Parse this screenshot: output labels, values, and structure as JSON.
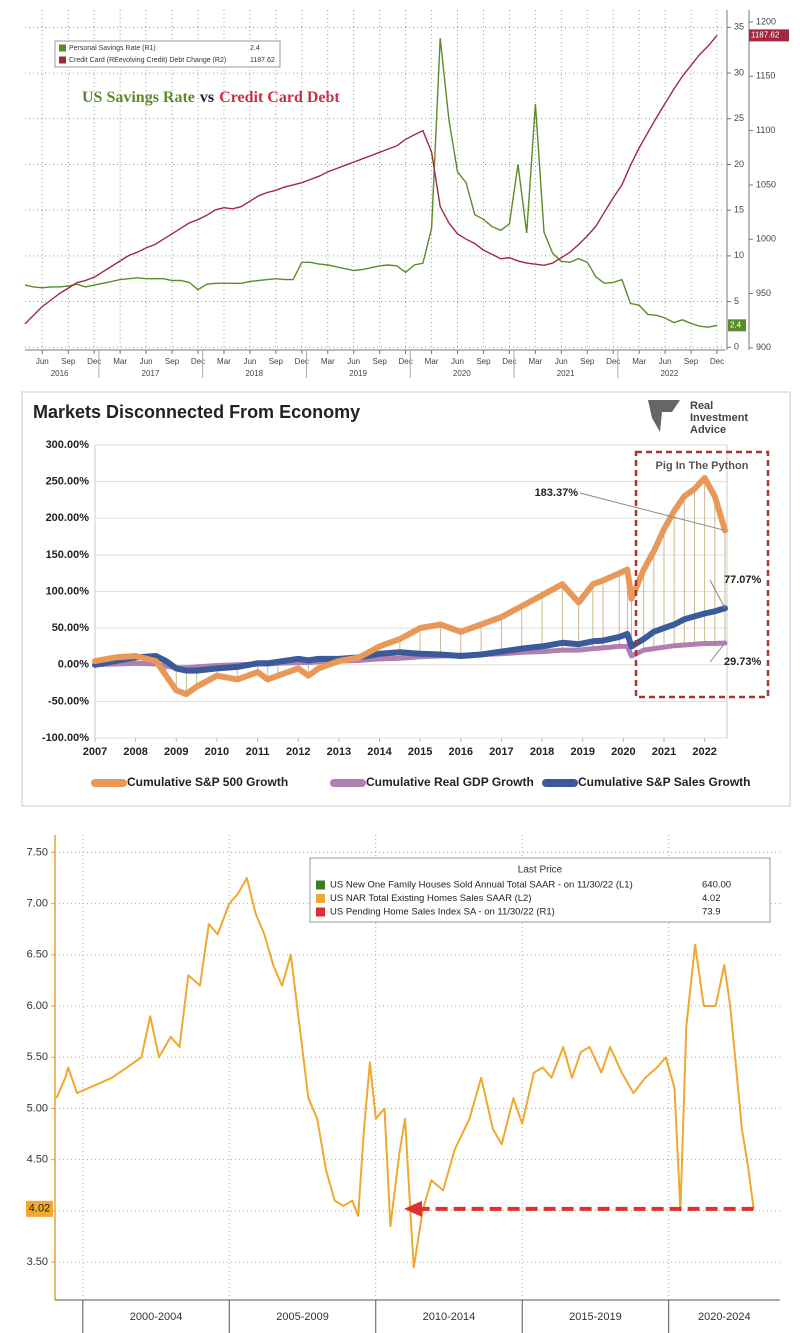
{
  "chart_data": [
    {
      "type": "line",
      "title_parts": [
        "US Savings Rate",
        "vs",
        "Credit Card Debt"
      ],
      "categories": [
        null,
        null,
        "Jun",
        null,
        null,
        "Sep",
        null,
        null,
        "Dec",
        null,
        null,
        "Mar",
        null,
        null,
        "Jun",
        null,
        null,
        "Sep",
        null,
        null,
        "Dec",
        null,
        null,
        "Mar",
        null,
        null,
        "Jun",
        null,
        null,
        "Sep",
        null,
        null,
        "Dec",
        null,
        null,
        "Mar",
        null,
        null,
        "Jun",
        null,
        null,
        "Sep",
        null,
        null,
        "Dec",
        null,
        null,
        "Mar",
        null,
        null,
        "Jun",
        null,
        null,
        "Sep",
        null,
        null,
        "Dec",
        null,
        null,
        "Mar",
        null,
        null,
        "Jun",
        null,
        null,
        "Sep",
        null,
        null,
        "Dec",
        null,
        null,
        "Mar",
        null,
        null,
        "Jun",
        null,
        null,
        "Sep",
        null,
        null,
        "Dec"
      ],
      "x_group_labels": [
        "2016",
        "2017",
        "2018",
        "2019",
        "2020",
        "2021",
        "2022"
      ],
      "series": [
        {
          "name": "Personal Savings Rate (R1)",
          "color": "#5b8c2a",
          "axis": "y",
          "values": [
            6.8,
            6.6,
            6.5,
            6.6,
            6.6,
            6.7,
            6.9,
            6.6,
            6.8,
            7.0,
            7.2,
            7.4,
            7.5,
            7.6,
            7.5,
            7.5,
            7.5,
            7.3,
            7.3,
            7.1,
            6.3,
            6.9,
            7.0,
            7.0,
            7.0,
            7.0,
            7.2,
            7.3,
            7.4,
            7.5,
            7.4,
            7.4,
            9.3,
            9.3,
            9.1,
            9.0,
            8.8,
            8.6,
            8.4,
            8.5,
            8.7,
            8.9,
            9.0,
            8.9,
            8.2,
            9.0,
            9.2,
            13.0,
            33.8,
            24.9,
            19.2,
            18.0,
            14.5,
            14.0,
            13.2,
            12.8,
            13.5,
            20.0,
            12.5,
            26.6,
            12.6,
            10.3,
            9.4,
            9.3,
            9.7,
            9.3,
            7.7,
            7.0,
            7.1,
            7.4,
            4.8,
            4.6,
            3.6,
            3.5,
            3.2,
            2.7,
            3.0,
            2.6,
            2.3,
            2.2,
            2.4
          ]
        },
        {
          "name": "Credit Card (REevolving Credit) Debt Change (R2)",
          "color": "#a3283f",
          "axis": "y2",
          "values": [
            922,
            930,
            938,
            944,
            950,
            955,
            960,
            962,
            965,
            970,
            975,
            980,
            985,
            988,
            992,
            995,
            1000,
            1005,
            1010,
            1015,
            1018,
            1022,
            1027,
            1029,
            1028,
            1030,
            1035,
            1040,
            1043,
            1045,
            1048,
            1050,
            1052,
            1055,
            1058,
            1062,
            1065,
            1068,
            1071,
            1074,
            1077,
            1080,
            1083,
            1086,
            1092,
            1096,
            1100,
            1080,
            1030,
            1015,
            1005,
            1000,
            996,
            990,
            986,
            982,
            983,
            980,
            978,
            977,
            976,
            978,
            983,
            988,
            995,
            1003,
            1012,
            1025,
            1038,
            1050,
            1068,
            1084,
            1098,
            1112,
            1125,
            1138,
            1150,
            1160,
            1170,
            1178,
            1187.62
          ]
        }
      ],
      "ylim": [
        -0.3,
        36.9
      ],
      "yticks": [
        0,
        5,
        10,
        15,
        20,
        25,
        30,
        35
      ],
      "y2lim": [
        898,
        1211
      ],
      "y2ticks": [
        900,
        950,
        1000,
        1050,
        1100,
        1150,
        1200
      ],
      "grid": true,
      "legend": "upper left"
    },
    {
      "type": "line",
      "title": "Markets Disconnected From Economy",
      "logo_text": [
        "Real",
        "Investment",
        "Advice"
      ],
      "annotation": "Pig In The Python",
      "x": [
        2007,
        2007.5,
        2008,
        2008.5,
        2008.75,
        2009,
        2009.25,
        2009.5,
        2010,
        2010.5,
        2011,
        2011.25,
        2011.5,
        2012,
        2012.25,
        2012.5,
        2013,
        2013.5,
        2014,
        2014.5,
        2015,
        2015.5,
        2016,
        2016.5,
        2017,
        2017.5,
        2018,
        2018.5,
        2018.9,
        2019.25,
        2019.5,
        2019.9,
        2020.1,
        2020.2,
        2020.5,
        2020.75,
        2021,
        2021.25,
        2021.5,
        2021.75,
        2022,
        2022.25,
        2022.5
      ],
      "series": [
        {
          "name": "Cumulative S&P 500 Growth",
          "color": "#e8995a",
          "end_label": "183.37%",
          "values": [
            5,
            10,
            12,
            5,
            -15,
            -35,
            -40,
            -30,
            -15,
            -20,
            -10,
            -20,
            -15,
            -5,
            -15,
            -5,
            5,
            10,
            25,
            35,
            50,
            55,
            45,
            55,
            65,
            80,
            95,
            110,
            85,
            110,
            115,
            125,
            130,
            90,
            130,
            155,
            185,
            210,
            230,
            240,
            255,
            230,
            183.37
          ]
        },
        {
          "name": "Cumulative Real GDP Growth",
          "color": "#b07fb0",
          "end_label": "29.73%",
          "values": [
            0,
            1,
            2,
            1,
            -2,
            -4,
            -4,
            -3,
            -1,
            0,
            1,
            1,
            2,
            3,
            3,
            4,
            5,
            6,
            8,
            9,
            11,
            12,
            13,
            14,
            15,
            17,
            18,
            20,
            20,
            22,
            23,
            25,
            25,
            12,
            20,
            22,
            24,
            26,
            27,
            28,
            29,
            29,
            29.73
          ]
        },
        {
          "name": "Cumulative S&P Sales Growth",
          "color": "#3a5a9a",
          "end_label": "77.07%",
          "values": [
            0,
            5,
            10,
            12,
            5,
            -5,
            -8,
            -8,
            -5,
            -3,
            2,
            2,
            4,
            8,
            6,
            8,
            8,
            10,
            15,
            17,
            15,
            14,
            12,
            14,
            18,
            22,
            25,
            30,
            28,
            32,
            33,
            38,
            42,
            25,
            35,
            45,
            50,
            55,
            62,
            66,
            70,
            73,
            77.07
          ]
        }
      ],
      "xlim": [
        2007,
        2022.55
      ],
      "xticks": [
        2007,
        2008,
        2009,
        2010,
        2011,
        2012,
        2013,
        2014,
        2015,
        2016,
        2017,
        2018,
        2019,
        2020,
        2021,
        2022
      ],
      "ylim": [
        -100,
        300
      ],
      "yticks": [
        {
          "value": -100,
          "label": "-100.00%"
        },
        {
          "value": -50,
          "label": "-50.00%"
        },
        {
          "value": 0,
          "label": "0.00%"
        },
        {
          "value": 50,
          "label": "50.00%"
        },
        {
          "value": 100,
          "label": "100.00%"
        },
        {
          "value": 150,
          "label": "150.00%"
        },
        {
          "value": 200,
          "label": "200.00%"
        },
        {
          "value": 250,
          "label": "250.00%"
        },
        {
          "value": 300,
          "label": "300.00%"
        }
      ],
      "grid": true,
      "legend": "bottom"
    },
    {
      "type": "line",
      "legend_title": "Last Price",
      "series": [
        {
          "name": "US New One Family Houses Sold Annual Total SAAR -  on 11/30/22  (L1)",
          "color": "#3c7a2c",
          "last_price": "640.00"
        },
        {
          "name": "US NAR Total Existing Homes Sales SAAR  (L2)",
          "color": "#f0a830",
          "last_price": "4.02",
          "x": [
            1999.1,
            1999.4,
            1999.5,
            1999.8,
            2000.2,
            2000.6,
            2001.0,
            2001.5,
            2002.0,
            2002.3,
            2002.6,
            2003.0,
            2003.3,
            2003.6,
            2004.0,
            2004.3,
            2004.6,
            2005.0,
            2005.3,
            2005.6,
            2005.9,
            2006.2,
            2006.5,
            2006.8,
            2007.1,
            2007.4,
            2007.7,
            2008.0,
            2008.3,
            2008.6,
            2008.9,
            2009.2,
            2009.4,
            2009.6,
            2009.8,
            2010.0,
            2010.3,
            2010.5,
            2010.8,
            2011.0,
            2011.2,
            2011.3,
            2011.6,
            2011.9,
            2012.3,
            2012.7,
            2013.2,
            2013.6,
            2014.0,
            2014.3,
            2014.7,
            2015.0,
            2015.4,
            2015.7,
            2016.0,
            2016.4,
            2016.7,
            2017.0,
            2017.3,
            2017.7,
            2018.0,
            2018.4,
            2018.8,
            2019.2,
            2019.6,
            2019.9,
            2020.2,
            2020.4,
            2020.6,
            2020.9,
            2021.2,
            2021.6,
            2021.9,
            2022.1,
            2022.3,
            2022.5,
            2022.7,
            2022.9
          ],
          "values": [
            5.1,
            5.3,
            5.4,
            5.15,
            5.2,
            5.25,
            5.3,
            5.4,
            5.5,
            5.9,
            5.5,
            5.7,
            5.6,
            6.3,
            6.2,
            6.8,
            6.7,
            7.0,
            7.1,
            7.25,
            6.9,
            6.7,
            6.4,
            6.2,
            6.5,
            5.8,
            5.1,
            4.9,
            4.4,
            4.1,
            4.05,
            4.1,
            3.95,
            4.8,
            5.45,
            4.9,
            5.0,
            3.85,
            4.55,
            4.9,
            3.9,
            3.45,
            4.0,
            4.3,
            4.2,
            4.6,
            4.9,
            5.3,
            4.8,
            4.65,
            5.1,
            4.85,
            5.35,
            5.4,
            5.3,
            5.6,
            5.3,
            5.55,
            5.6,
            5.35,
            5.6,
            5.35,
            5.15,
            5.3,
            5.4,
            5.5,
            5.2,
            4.0,
            5.8,
            6.6,
            6.0,
            6.0,
            6.4,
            6.0,
            5.4,
            4.8,
            4.45,
            4.02
          ]
        },
        {
          "name": "US Pending Home Sales Index SA -  on 11/30/22  (R1)",
          "color": "#d8313a",
          "last_price": "73.9"
        }
      ],
      "xlim": [
        1999.05,
        2023.8
      ],
      "x_group_starts": [
        2000,
        2005,
        2010,
        2015,
        2020
      ],
      "x_group_labels": [
        "2000-2004",
        "2005-2009",
        "2010-2014",
        "2015-2019",
        "2020-2024"
      ],
      "ylim": [
        3.13,
        7.67
      ],
      "yticks": [
        {
          "value": 3.5,
          "label": "3.50"
        },
        {
          "value": 4,
          "label": "4.00"
        },
        {
          "value": 4.5,
          "label": "4.50"
        },
        {
          "value": 5,
          "label": "5.00"
        },
        {
          "value": 5.5,
          "label": "5.50"
        },
        {
          "value": 6,
          "label": "6.00"
        },
        {
          "value": 6.5,
          "label": "6.50"
        },
        {
          "value": 7,
          "label": "7.00"
        },
        {
          "value": 7.5,
          "label": "7.50"
        }
      ],
      "grid": true,
      "legend": "upper right"
    }
  ]
}
